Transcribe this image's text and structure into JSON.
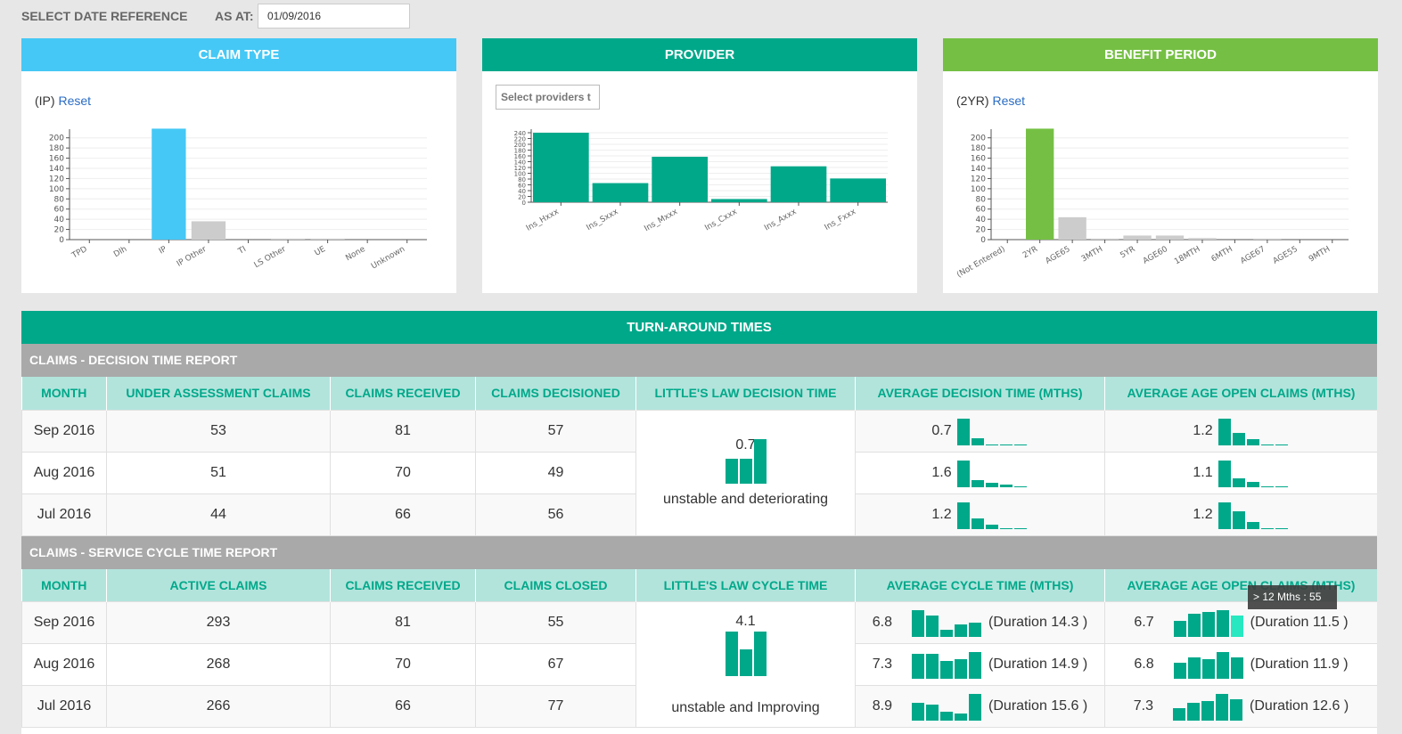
{
  "topbar": {
    "select_label": "SELECT DATE REFERENCE",
    "as_at_label": "AS AT:",
    "date_value": "01/09/2016"
  },
  "claim_type": {
    "title": "CLAIM TYPE",
    "filter_label": "(IP)",
    "reset_label": "Reset",
    "accent": "#45c8f5",
    "chart_data": {
      "type": "bar",
      "categories": [
        "TPD",
        "DIh",
        "IP",
        "IP Other",
        "TI",
        "LS Other",
        "UE",
        "None",
        "Unknown"
      ],
      "values": [
        0,
        0,
        218,
        36,
        0,
        2,
        2,
        0,
        0
      ],
      "selected": "IP",
      "ylim": [
        0,
        210
      ],
      "yticks": [
        0,
        20,
        40,
        60,
        80,
        100,
        120,
        140,
        160,
        180,
        200
      ]
    }
  },
  "provider": {
    "title": "PROVIDER",
    "select_placeholder": "Select providers t",
    "accent": "#00a88a",
    "chart_data": {
      "type": "bar",
      "categories": [
        "Ins_Hxxx",
        "Ins_Sxxx",
        "Ins_Mxxx",
        "Ins_Cxxx",
        "Ins_Axxx",
        "Ins_Fxxx"
      ],
      "values": [
        240,
        66,
        157,
        11,
        124,
        82
      ],
      "ylim": [
        0,
        240
      ],
      "yticks": [
        0,
        20,
        40,
        60,
        80,
        100,
        120,
        140,
        160,
        180,
        200,
        220,
        240
      ]
    }
  },
  "benefit_period": {
    "title": "BENEFIT PERIOD",
    "filter_label": "(2YR)",
    "reset_label": "Reset",
    "accent": "#75c044",
    "chart_data": {
      "type": "bar",
      "categories": [
        "(Not Entered)",
        "2YR",
        "AGE65",
        "3MTH",
        "5YR",
        "AGE60",
        "18MTH",
        "6MTH",
        "AGE67",
        "AGE55",
        "9MTH"
      ],
      "values": [
        0,
        218,
        44,
        2,
        8,
        8,
        3,
        0,
        2,
        0,
        0
      ],
      "selected": "2YR",
      "ylim": [
        0,
        210
      ],
      "yticks": [
        0,
        20,
        40,
        60,
        80,
        100,
        120,
        140,
        160,
        180,
        200
      ]
    }
  },
  "tat": {
    "title": "TURN-AROUND TIMES",
    "decision": {
      "title": "CLAIMS - DECISION TIME REPORT",
      "headers": [
        "MONTH",
        "UNDER ASSESSMENT CLAIMS",
        "CLAIMS RECEIVED",
        "CLAIMS DECISIONED",
        "LITTLE'S LAW DECISION TIME",
        "AVERAGE DECISION TIME (MTHS)",
        "AVERAGE AGE OPEN CLAIMS (MTHS)"
      ],
      "rows": [
        {
          "month": "Sep 2016",
          "under": "53",
          "received": "81",
          "decisioned": "57",
          "avg_decision": "0.7",
          "avg_age": "1.2"
        },
        {
          "month": "Aug 2016",
          "under": "51",
          "received": "70",
          "decisioned": "49",
          "avg_decision": "1.6",
          "avg_age": "1.1"
        },
        {
          "month": "Jul 2016",
          "under": "44",
          "received": "66",
          "decisioned": "56",
          "avg_decision": "1.2",
          "avg_age": "1.2"
        }
      ],
      "littles_value": "0.7",
      "littles_status": "unstable and deteriorating"
    },
    "service": {
      "title": "CLAIMS - SERVICE CYCLE TIME REPORT",
      "headers": [
        "MONTH",
        "ACTIVE CLAIMS",
        "CLAIMS RECEIVED",
        "CLAIMS CLOSED",
        "LITTLE'S LAW CYCLE TIME",
        "AVERAGE CYCLE TIME (MTHS)",
        "AVERAGE AGE OPEN CLAIMS (MTHS)"
      ],
      "rows": [
        {
          "month": "Sep 2016",
          "active": "293",
          "received": "81",
          "closed": "55",
          "avg_cycle": "6.8",
          "cycle_duration": "(Duration 14.3 )",
          "avg_age": "6.7",
          "age_duration": "(Duration 11.5 )"
        },
        {
          "month": "Aug 2016",
          "active": "268",
          "received": "70",
          "closed": "67",
          "avg_cycle": "7.3",
          "cycle_duration": "(Duration 14.9 )",
          "avg_age": "6.8",
          "age_duration": "(Duration 11.9 )"
        },
        {
          "month": "Jul 2016",
          "active": "266",
          "received": "66",
          "closed": "77",
          "avg_cycle": "8.9",
          "cycle_duration": "(Duration 15.6 )",
          "avg_age": "7.3",
          "age_duration": "(Duration 12.6 )"
        }
      ],
      "littles_value": "4.1",
      "littles_status": "unstable and Improving"
    },
    "tooltip": "> 12 Mths : 55"
  },
  "colors": {
    "teal": "#00a88a",
    "teal_light": "#b2e4dc",
    "grey_bar": "#cccccc",
    "highlight": "#27e8c0"
  }
}
